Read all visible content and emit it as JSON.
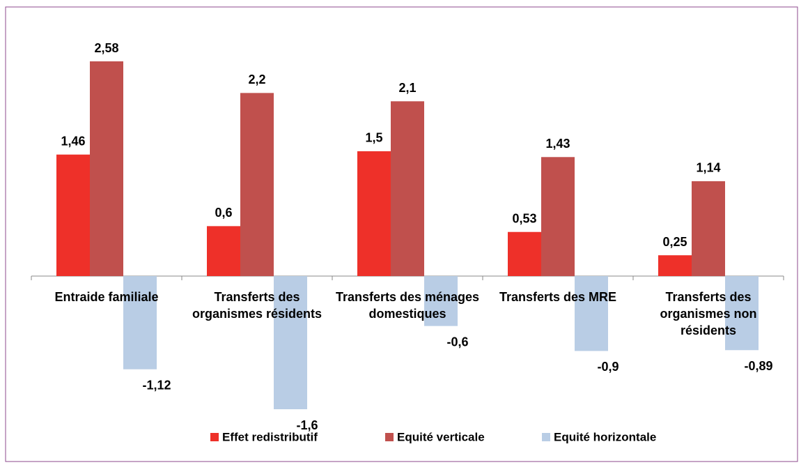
{
  "chart_data": {
    "type": "bar",
    "categories": [
      "Entraide familiale",
      "Transferts des organismes résidents",
      "Transferts des ménages domestiques",
      "Transferts des MRE",
      "Transferts des organismes non résidents"
    ],
    "series": [
      {
        "name": "Effet redistributif",
        "color": "#ee3029",
        "values": [
          1.46,
          0.6,
          1.5,
          0.53,
          0.25
        ],
        "value_labels": [
          "1,46",
          "0,6",
          "1,5",
          "0,53",
          "0,25"
        ]
      },
      {
        "name": "Equité verticale",
        "color": "#c0504d",
        "values": [
          2.58,
          2.2,
          2.1,
          1.43,
          1.14
        ],
        "value_labels": [
          "2,58",
          "2,2",
          "2,1",
          "1,43",
          "1,14"
        ]
      },
      {
        "name": "Equité horizontale",
        "color": "#b9cde5",
        "values": [
          -1.12,
          -1.6,
          -0.6,
          -0.9,
          -0.89
        ],
        "value_labels": [
          "-1,12",
          "-1,6",
          "-0,6",
          "-0,9",
          "-0,89"
        ]
      }
    ],
    "legend": "bottom"
  }
}
